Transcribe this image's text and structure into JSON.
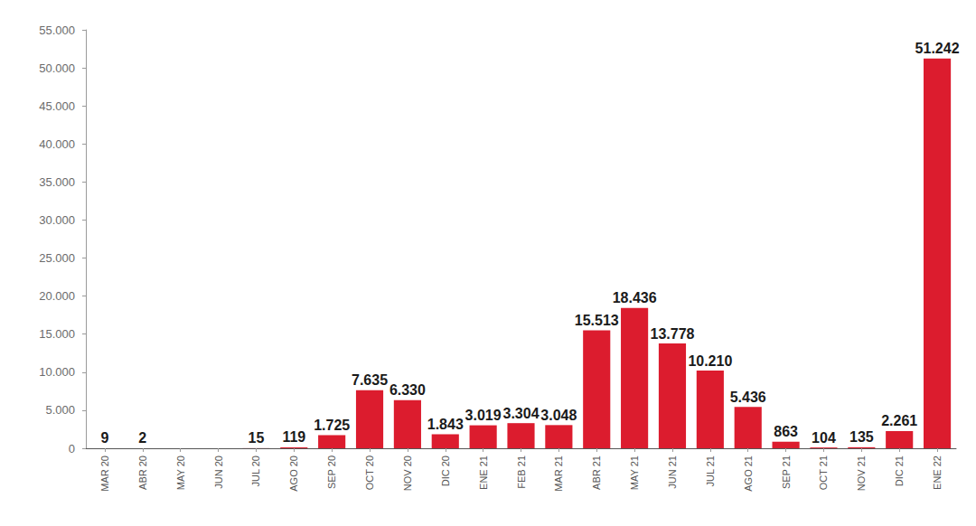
{
  "chart_data": {
    "type": "bar",
    "categories": [
      "MAR 20",
      "ABR 20",
      "MAY 20",
      "JUN 20",
      "JUL 20",
      "AGO 20",
      "SEP 20",
      "OCT 20",
      "NOV 20",
      "DIC 20",
      "ENE 21",
      "FEB 21",
      "MAR 21",
      "ABR 21",
      "MAY 21",
      "JUN 21",
      "JUL 21",
      "AGO 21",
      "SEP 21",
      "OCT 21",
      "NOV 21",
      "DIC 21",
      "ENE 22"
    ],
    "values": [
      9,
      2,
      null,
      null,
      15,
      119,
      1725,
      7635,
      6330,
      1843,
      3019,
      3304,
      3048,
      15513,
      18436,
      13778,
      10210,
      5436,
      863,
      104,
      135,
      2261,
      51242
    ],
    "value_labels": [
      "9",
      "2",
      null,
      null,
      "15",
      "119",
      "1.725",
      "7.635",
      "6.330",
      "1.843",
      "3.019",
      "3.304",
      "3.048",
      "15.513",
      "18.436",
      "13.778",
      "10.210",
      "5.436",
      "863",
      "104",
      "135",
      "2.261",
      "51.242"
    ],
    "color": "#dc1c2e",
    "ylim": [
      0,
      55000
    ],
    "yticks": [
      0,
      {
        "value": 5000,
        "label": "5.000"
      },
      {
        "value": 10000,
        "label": "10.000"
      },
      {
        "value": 15000,
        "label": "15.000"
      },
      {
        "value": 20000,
        "label": "20.000"
      },
      {
        "value": 25000,
        "label": "25.000"
      },
      {
        "value": 30000,
        "label": "30.000"
      },
      {
        "value": 35000,
        "label": "35.000"
      },
      {
        "value": 40000,
        "label": "40.000"
      },
      {
        "value": 45000,
        "label": "45.000"
      },
      {
        "value": 50000,
        "label": "50.000"
      },
      {
        "value": 55000,
        "label": "55.000"
      }
    ],
    "grid": false,
    "data_labels": true
  }
}
